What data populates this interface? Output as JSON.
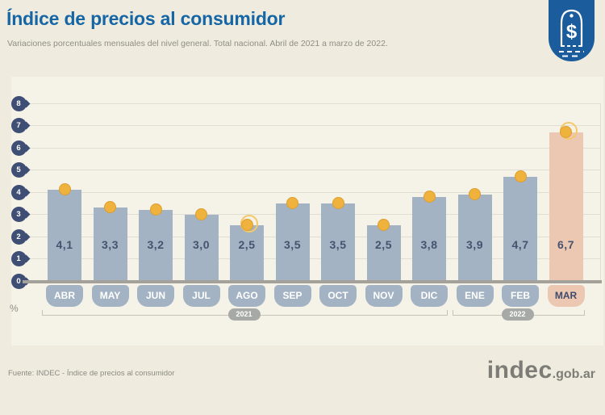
{
  "header": {
    "title": "Índice de precios al consumidor",
    "subtitle": "Variaciones porcentuales mensuales del nivel general. Total nacional. Abril de 2021 a marzo de 2022.",
    "title_color": "#1666a5"
  },
  "chart_data": {
    "type": "bar",
    "title": "Índice de precios al consumidor",
    "subtitle": "Variaciones porcentuales mensuales del nivel general. Total nacional. Abril de 2021 a marzo de 2022.",
    "categories": [
      "ABR",
      "MAY",
      "JUN",
      "JUL",
      "AGO",
      "SEP",
      "OCT",
      "NOV",
      "DIC",
      "ENE",
      "FEB",
      "MAR"
    ],
    "values": [
      4.1,
      3.3,
      3.2,
      3.0,
      2.5,
      3.5,
      3.5,
      2.5,
      3.8,
      3.9,
      4.7,
      6.7
    ],
    "value_labels": [
      "4,1",
      "3,3",
      "3,2",
      "3,0",
      "2,5",
      "3,5",
      "3,5",
      "2,5",
      "3,8",
      "3,9",
      "4,7",
      "6,7"
    ],
    "ylabel": "%",
    "ylim": [
      0,
      8
    ],
    "yticks": [
      0,
      1,
      2,
      3,
      4,
      5,
      6,
      7,
      8
    ],
    "grid": true,
    "highlight_category": "MAR",
    "coin_marker_categories": [
      "AGO",
      "MAR"
    ],
    "year_groups": [
      {
        "label": "2021",
        "from": "ABR",
        "to": "DIC"
      },
      {
        "label": "2022",
        "from": "ENE",
        "to": "MAR"
      }
    ],
    "colors": {
      "bar": "#a3b3c3",
      "highlight_bar": "#ecc7b2",
      "dot": "#efb23c",
      "axis_badge": "#3f4e74",
      "value_text": "#46536f",
      "month_text": "#ffffff",
      "highlight_month_text": "#3f4b6a"
    }
  },
  "footer": {
    "source": "Fuente: INDEC - Índice de precios al consumidor",
    "logo_text": "indec",
    "logo_suffix": ".gob.ar"
  }
}
